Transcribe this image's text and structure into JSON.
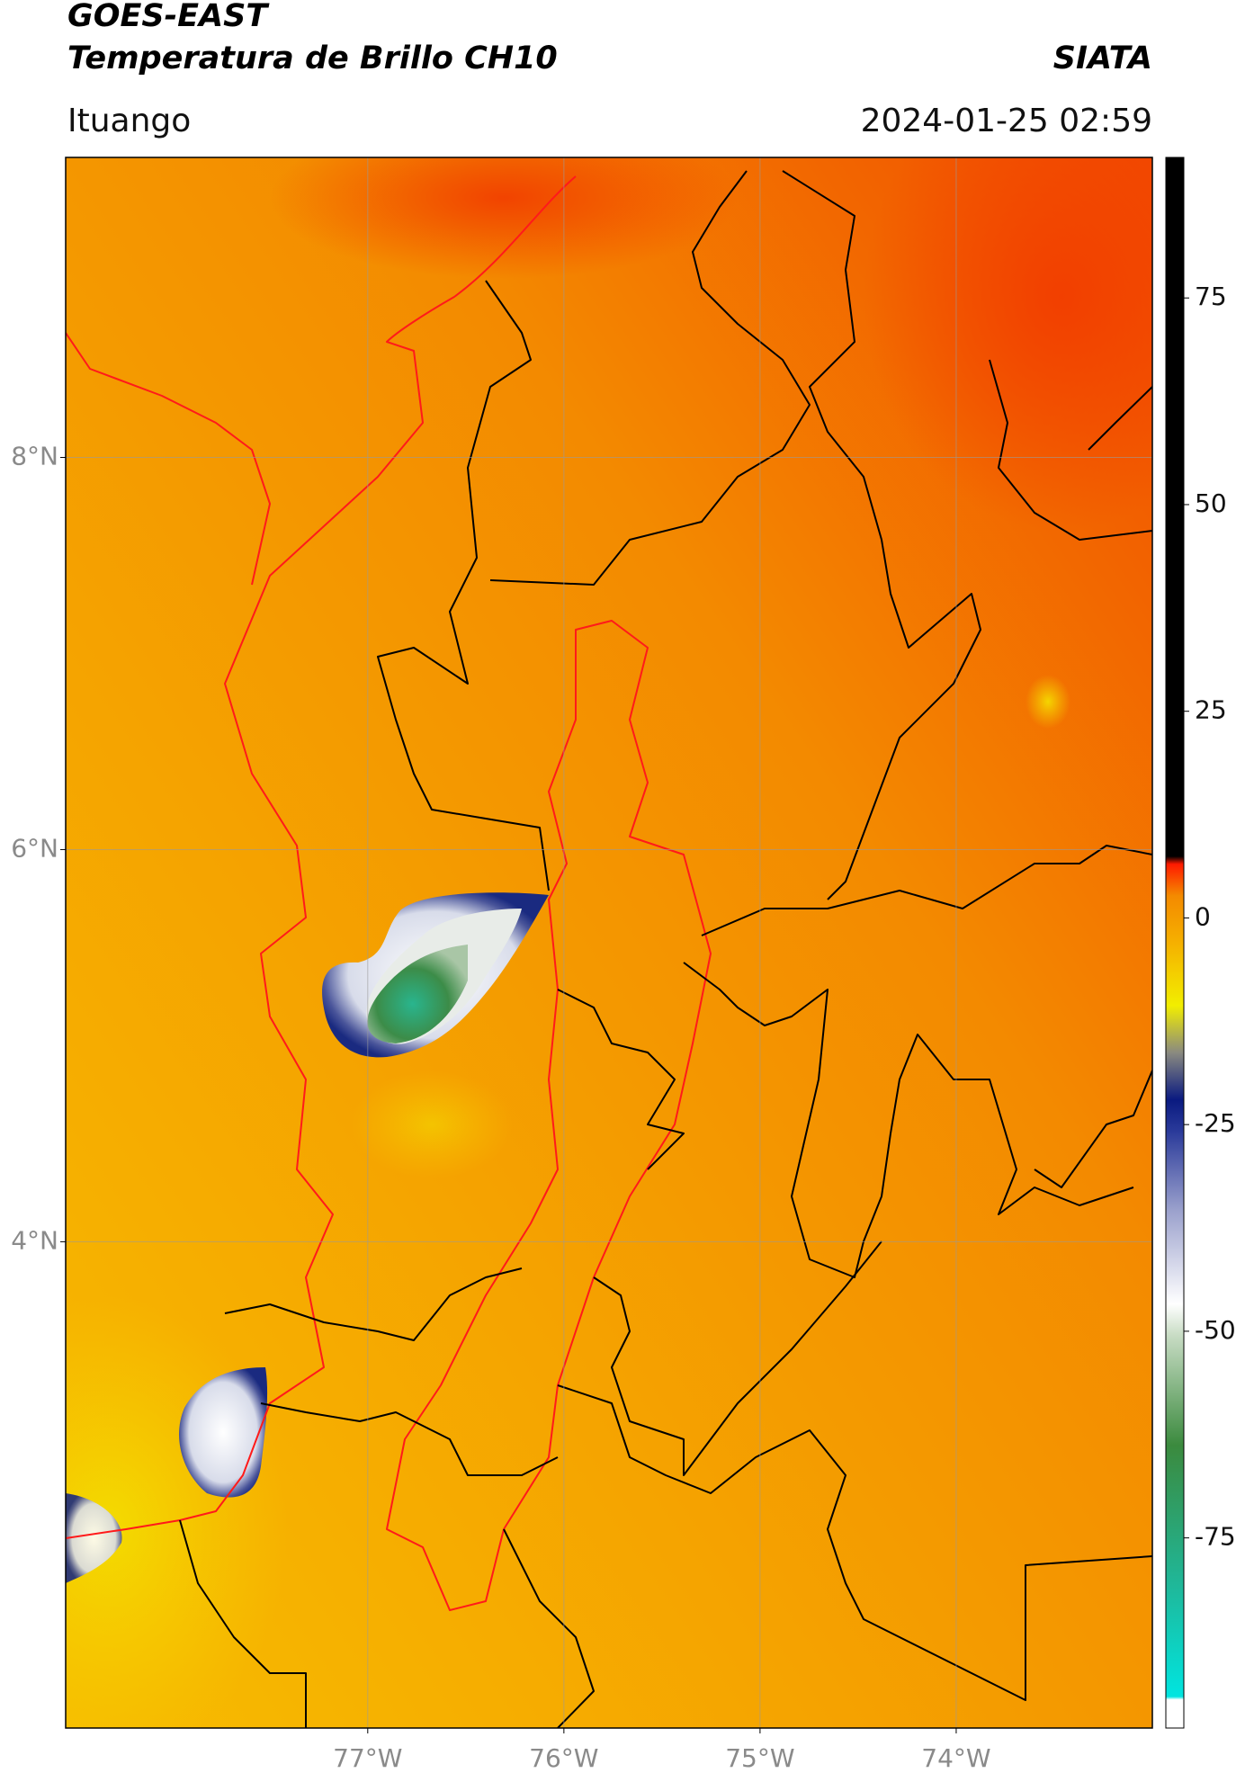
{
  "header": {
    "title": "GOES-EAST",
    "subtitle": "Temperatura de Brillo CH10",
    "brand": "SIATA",
    "location": "Ituango",
    "timestamp": "2024-01-25 02:59"
  },
  "map": {
    "xlim": [
      -78.54,
      -73.0
    ],
    "ylim": [
      1.52,
      9.53
    ],
    "xticks": [
      {
        "value": -77,
        "label": "77°W"
      },
      {
        "value": -76,
        "label": "76°W"
      },
      {
        "value": -75,
        "label": "75°W"
      },
      {
        "value": -74,
        "label": "74°W"
      }
    ],
    "yticks": [
      {
        "value": 4,
        "label": "4°N"
      },
      {
        "value": 6,
        "label": "6°N"
      },
      {
        "value": 8,
        "label": "8°N"
      }
    ],
    "grid": true
  },
  "colorbar": {
    "lim": [
      -98,
      92
    ],
    "ticks": [
      -75,
      -50,
      -25,
      0,
      25,
      50,
      75
    ]
  }
}
